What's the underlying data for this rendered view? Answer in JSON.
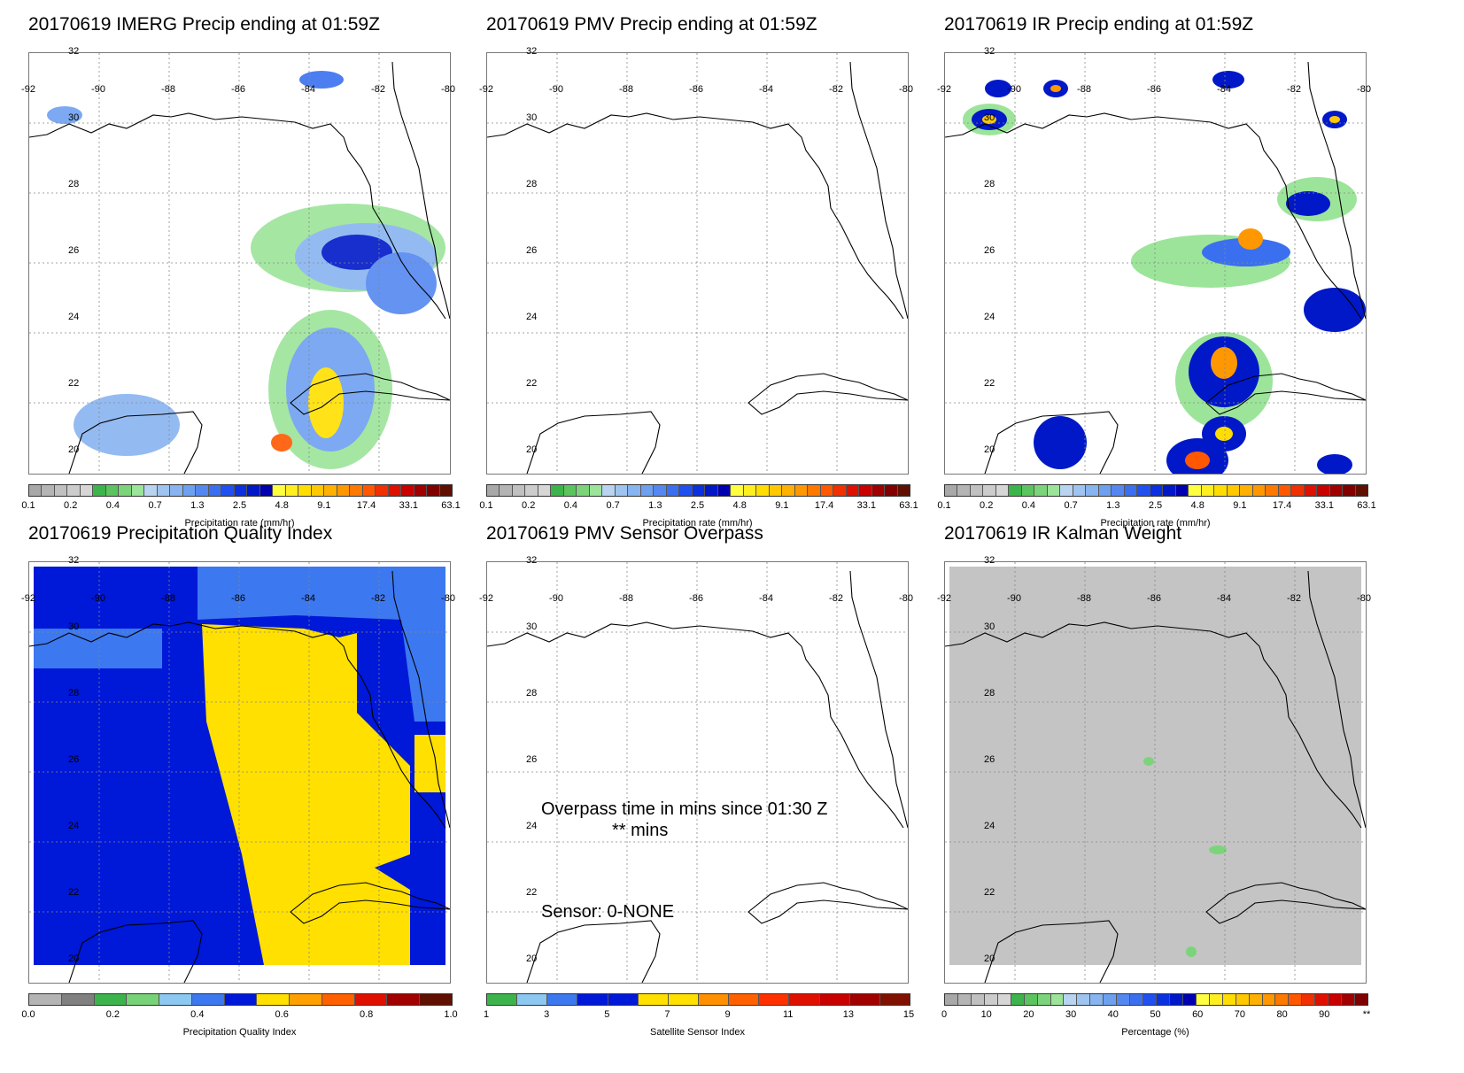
{
  "panels": [
    {
      "title": "20170619 IMERG Precip ending at 01:59Z",
      "colorbar_label": "Precipitation rate (mm/hr)"
    },
    {
      "title": "20170619 PMV Precip ending at 01:59Z",
      "colorbar_label": "Precipitation rate (mm/hr)"
    },
    {
      "title": "20170619 IR Precip ending at 01:59Z",
      "colorbar_label": "Precipitation rate (mm/hr)"
    },
    {
      "title": "20170619 Precipitation Quality Index",
      "colorbar_label": "Precipitation Quality Index"
    },
    {
      "title": "20170619 PMV Sensor Overpass",
      "colorbar_label": "Satellite Sensor Index"
    },
    {
      "title": "20170619 IR Kalman Weight",
      "colorbar_label": "Percentage (%)"
    }
  ],
  "lon_labels": [
    "-92",
    "-90",
    "-88",
    "-86",
    "-84",
    "-82",
    "-80"
  ],
  "lat_labels": [
    "32",
    "30",
    "28",
    "26",
    "24",
    "22",
    "20"
  ],
  "precip_ticks": [
    "0.1",
    "0.2",
    "0.4",
    "0.7",
    "1.3",
    "2.5",
    "4.8",
    "9.1",
    "17.4",
    "33.1",
    "63.1"
  ],
  "quality_ticks": [
    "0.0",
    "0.2",
    "0.4",
    "0.6",
    "0.8",
    "1.0"
  ],
  "sensor_ticks": [
    "1",
    "3",
    "5",
    "7",
    "9",
    "11",
    "13",
    "15"
  ],
  "percent_ticks": [
    "0",
    "10",
    "20",
    "30",
    "40",
    "50",
    "60",
    "70",
    "80",
    "90",
    "**"
  ],
  "overpass": {
    "line1": "Overpass time in mins since 01:30 Z",
    "line2": "** mins",
    "sensor": "Sensor:   0-NONE"
  },
  "colors": {
    "precip_scale": [
      "#a8a8a8",
      "#b4b4b4",
      "#c0c0c0",
      "#cccccc",
      "#d6d6d6",
      "#3cb44b",
      "#5cc45e",
      "#7cd47a",
      "#9ce49a",
      "#b8d4f0",
      "#a0c4f0",
      "#88b4f0",
      "#6ea0f0",
      "#5488f0",
      "#3a70f0",
      "#2050f0",
      "#0a30e0",
      "#0018c8",
      "#0000b0",
      "#ffff40",
      "#ffee20",
      "#ffdd00",
      "#ffc800",
      "#ffb000",
      "#ff9800",
      "#ff7800",
      "#ff5800",
      "#f03000",
      "#e01000",
      "#c80000",
      "#a00000",
      "#800000",
      "#601000"
    ],
    "quality_scale": [
      "#b4b4b4",
      "#808080",
      "#3cb44b",
      "#78d278",
      "#8cc8f0",
      "#3c78f0",
      "#0018d8",
      "#ffe000",
      "#ffa000",
      "#ff6000",
      "#e01000",
      "#a00000",
      "#601000"
    ],
    "sensor_scale": [
      "#3cb44b",
      "#8cc8f0",
      "#3c78f0",
      "#0018d8",
      "#0018d8",
      "#ffe000",
      "#ffe000",
      "#ff9000",
      "#ff6000",
      "#ff3000",
      "#e01000",
      "#c80000",
      "#a00000",
      "#801000"
    ],
    "percent_scale": [
      "#a8a8a8",
      "#b4b4b4",
      "#c0c0c0",
      "#cccccc",
      "#d6d6d6",
      "#3cb44b",
      "#5cc45e",
      "#7cd47a",
      "#9ce49a",
      "#b8d4f0",
      "#a0c4f0",
      "#88b4f0",
      "#6ea0f0",
      "#5488f0",
      "#3a70f0",
      "#2050f0",
      "#0a30e0",
      "#0018c8",
      "#0000b0",
      "#ffff40",
      "#ffee20",
      "#ffdd00",
      "#ffc800",
      "#ffb000",
      "#ff9800",
      "#ff7800",
      "#ff5800",
      "#f03000",
      "#e01000",
      "#c80000",
      "#a00000",
      "#800000"
    ]
  }
}
